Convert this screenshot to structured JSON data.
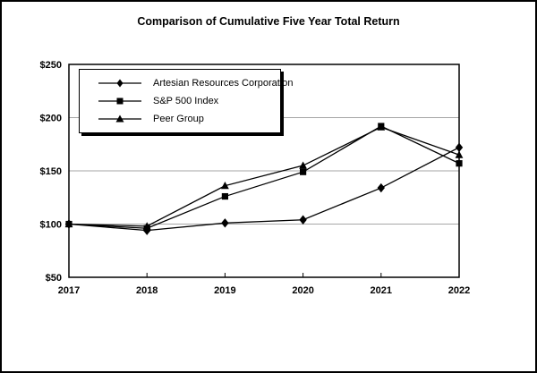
{
  "figure": {
    "title": "Comparison of Cumulative Five Year Total Return"
  },
  "chart_data": {
    "type": "line",
    "title": "Comparison of Cumulative Five Year Total Return",
    "categories": [
      "2017",
      "2018",
      "2019",
      "2020",
      "2021",
      "2022"
    ],
    "series": [
      {
        "name": "Artesian Resources Corporation",
        "marker": "diamond",
        "values": [
          100,
          94,
          101,
          104,
          134,
          172
        ]
      },
      {
        "name": "S&P 500 Index",
        "marker": "square",
        "values": [
          100,
          96,
          126,
          149,
          192,
          157
        ]
      },
      {
        "name": "Peer Group",
        "marker": "triangle",
        "values": [
          100,
          98,
          136,
          155,
          191,
          165
        ]
      }
    ],
    "xlabel": "",
    "ylabel": "",
    "ylim": [
      50,
      250
    ],
    "ytick_step": 50,
    "ytick_labels": [
      "$50",
      "$100",
      "$150",
      "$200",
      "$250"
    ],
    "grid": true,
    "legend_position": "top-left-inside",
    "colors": {
      "series_line": "#000000",
      "marker_fill": "#000000",
      "gridline": "#a6a6a6",
      "axis_frame": "#000000",
      "background": "#ffffff",
      "text": "#000000"
    }
  }
}
